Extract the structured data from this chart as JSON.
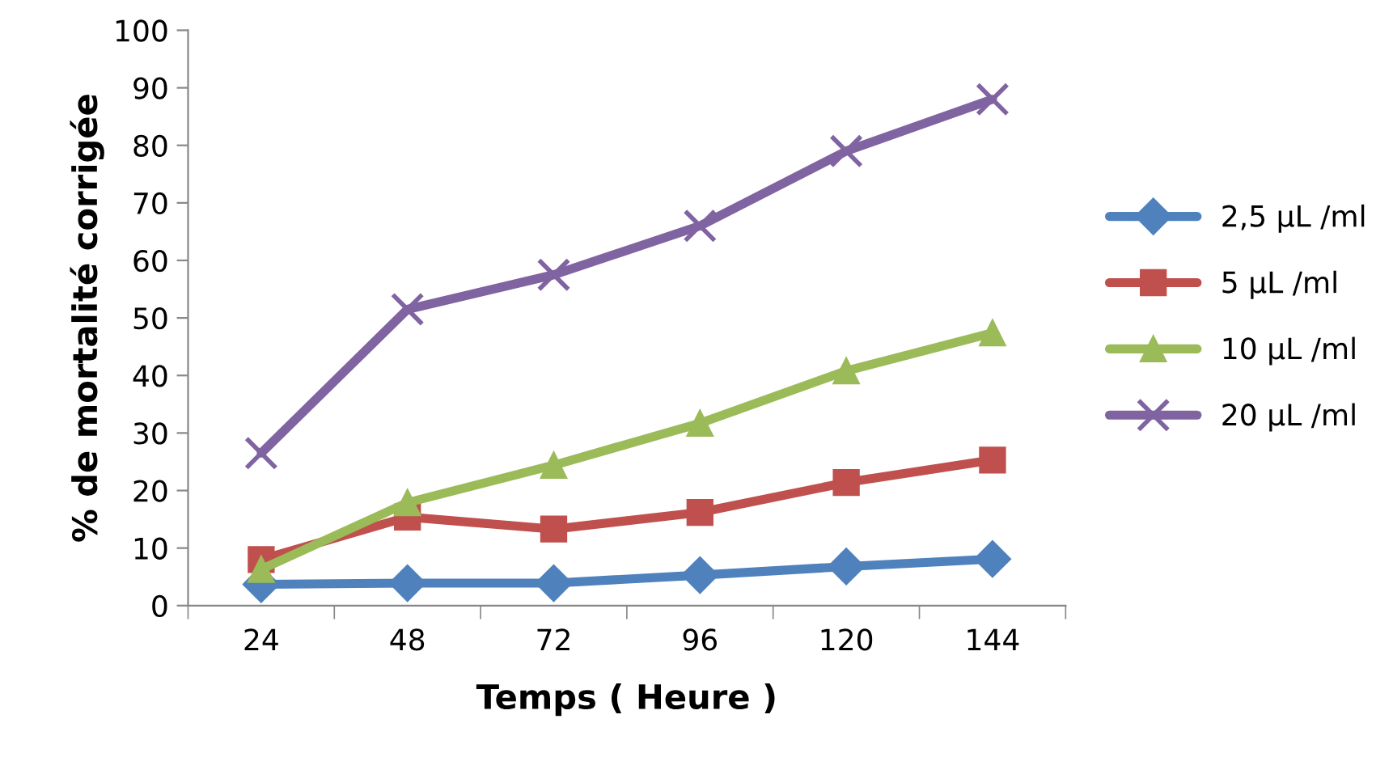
{
  "chart_data": {
    "type": "line",
    "xlabel": "Temps ( Heure )",
    "ylabel": "% de mortalité corrigée",
    "categories": [
      "24",
      "48",
      "72",
      "96",
      "120",
      "144"
    ],
    "ylim": [
      0,
      100
    ],
    "yticks": [
      0,
      10,
      20,
      30,
      40,
      50,
      60,
      70,
      80,
      90,
      100
    ],
    "grid": false,
    "legend": "right",
    "line_style": "solid",
    "series": [
      {
        "name": "2,5 µL /ml",
        "color": "#4f81bd",
        "marker": "diamond",
        "values": [
          3.7,
          3.9,
          3.9,
          5.3,
          6.8,
          8.1
        ]
      },
      {
        "name": "5 µL /ml",
        "color": "#c0504d",
        "marker": "square",
        "values": [
          8,
          15.4,
          13.3,
          16.2,
          21.4,
          25.3
        ]
      },
      {
        "name": "10 µL /ml",
        "color": "#9bbb59",
        "marker": "triangle",
        "values": [
          6.3,
          17.9,
          24.4,
          31.7,
          40.8,
          47.4
        ]
      },
      {
        "name": "20 µL /ml",
        "color": "#8064a2",
        "marker": "cross",
        "values": [
          26.5,
          51.5,
          57.5,
          66,
          79,
          88
        ]
      }
    ]
  }
}
